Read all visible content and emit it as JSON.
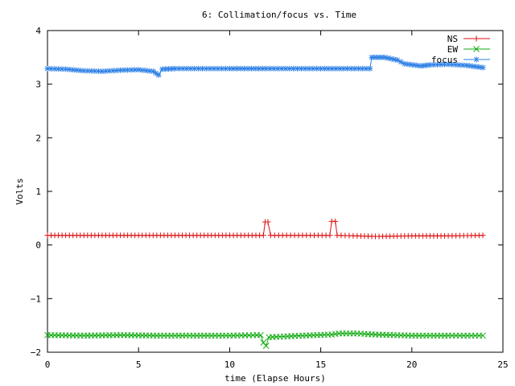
{
  "chart_data": {
    "type": "line",
    "title": "6: Collimation/focus vs. Time",
    "xlabel": "time (Elapse Hours)",
    "ylabel": "Volts",
    "xlim": [
      0,
      25
    ],
    "ylim": [
      -2,
      4
    ],
    "xticks": [
      "0",
      "5",
      "10",
      "15",
      "20",
      "25"
    ],
    "yticks": [
      "-2",
      "-1",
      "0",
      "1",
      "2",
      "3",
      "4"
    ],
    "grid": false,
    "legend_position": "top-right",
    "series": [
      {
        "name": "NS",
        "color": "#dd1111",
        "marker": "plus",
        "points": [
          [
            0,
            0.18
          ],
          [
            2,
            0.18
          ],
          [
            4,
            0.18
          ],
          [
            6,
            0.18
          ],
          [
            8,
            0.18
          ],
          [
            10,
            0.18
          ],
          [
            11.85,
            0.18
          ],
          [
            11.95,
            0.43
          ],
          [
            12.1,
            0.43
          ],
          [
            12.25,
            0.18
          ],
          [
            14,
            0.18
          ],
          [
            15.5,
            0.18
          ],
          [
            15.6,
            0.44
          ],
          [
            15.8,
            0.44
          ],
          [
            15.9,
            0.18
          ],
          [
            17,
            0.17
          ],
          [
            18,
            0.16
          ],
          [
            20,
            0.17
          ],
          [
            22,
            0.17
          ],
          [
            23.9,
            0.18
          ]
        ]
      },
      {
        "name": "EW",
        "color": "#11aa11",
        "marker": "x",
        "points": [
          [
            0,
            -1.68
          ],
          [
            2,
            -1.69
          ],
          [
            4,
            -1.68
          ],
          [
            6,
            -1.69
          ],
          [
            8,
            -1.69
          ],
          [
            10,
            -1.69
          ],
          [
            11.7,
            -1.68
          ],
          [
            11.85,
            -1.82
          ],
          [
            12,
            -1.88
          ],
          [
            12.15,
            -1.72
          ],
          [
            14,
            -1.69
          ],
          [
            15.6,
            -1.67
          ],
          [
            16,
            -1.65
          ],
          [
            17,
            -1.65
          ],
          [
            18,
            -1.67
          ],
          [
            20,
            -1.69
          ],
          [
            22,
            -1.69
          ],
          [
            23.9,
            -1.69
          ]
        ]
      },
      {
        "name": "focus",
        "color": "#2b7fe6",
        "marker": "star",
        "points": [
          [
            0,
            3.29
          ],
          [
            1,
            3.28
          ],
          [
            2,
            3.25
          ],
          [
            3,
            3.24
          ],
          [
            4,
            3.26
          ],
          [
            5,
            3.27
          ],
          [
            5.8,
            3.24
          ],
          [
            6.1,
            3.17
          ],
          [
            6.3,
            3.28
          ],
          [
            7,
            3.29
          ],
          [
            10,
            3.29
          ],
          [
            12,
            3.29
          ],
          [
            15,
            3.29
          ],
          [
            17.7,
            3.29
          ],
          [
            17.8,
            3.5
          ],
          [
            18.5,
            3.5
          ],
          [
            19.2,
            3.45
          ],
          [
            19.6,
            3.38
          ],
          [
            20.5,
            3.34
          ],
          [
            21,
            3.36
          ],
          [
            22,
            3.37
          ],
          [
            23,
            3.35
          ],
          [
            23.9,
            3.31
          ]
        ]
      }
    ]
  }
}
